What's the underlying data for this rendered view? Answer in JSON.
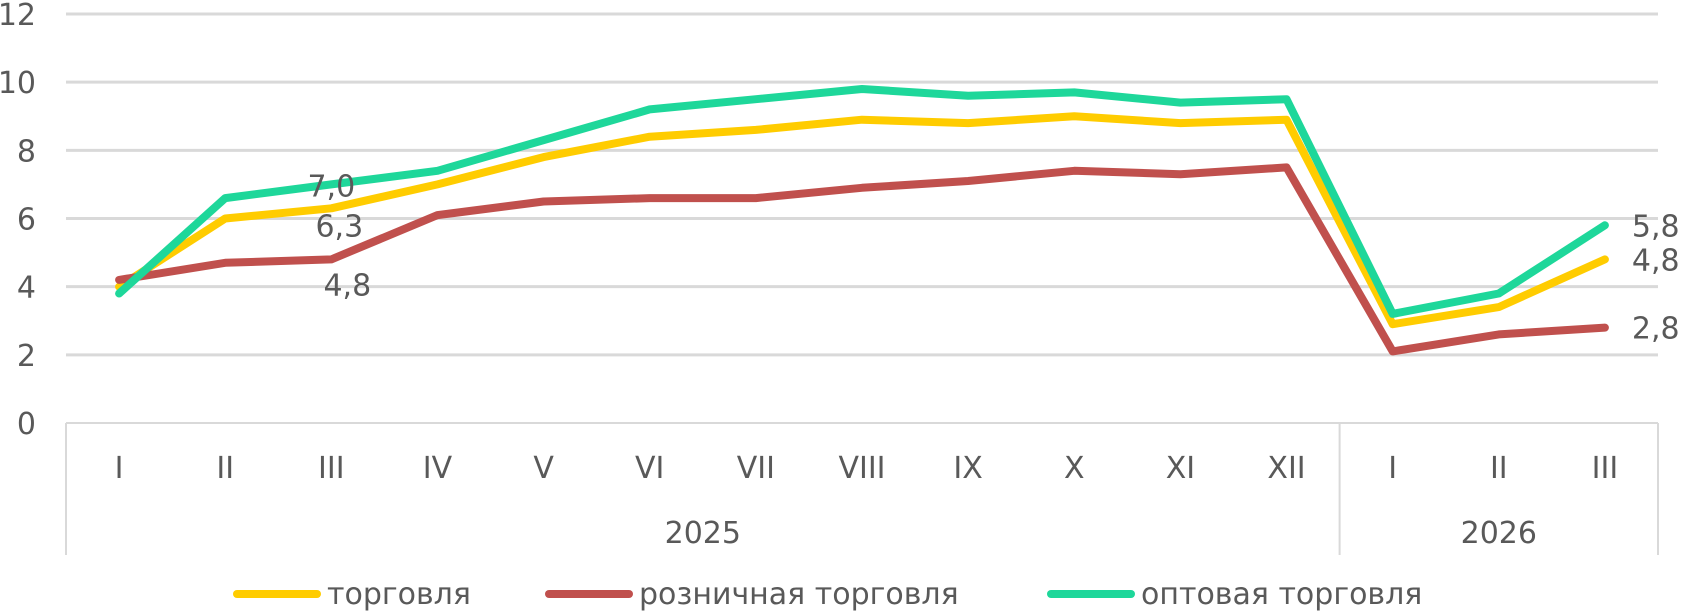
{
  "chart_data": {
    "type": "line",
    "categories": [
      "I",
      "II",
      "III",
      "IV",
      "V",
      "VI",
      "VII",
      "VIII",
      "IX",
      "X",
      "XI",
      "XII",
      "I",
      "II",
      "III"
    ],
    "groups": [
      {
        "label": "2025",
        "from": 0,
        "to": 11
      },
      {
        "label": "2026",
        "from": 12,
        "to": 14
      }
    ],
    "ylim": [
      0,
      12
    ],
    "yticks": [
      "0",
      "2",
      "4",
      "6",
      "8",
      "10",
      "12"
    ],
    "grid": true,
    "legend_position": "bottom",
    "series": [
      {
        "name": "торговля",
        "color": "#FFCC00",
        "values": [
          4.0,
          6.0,
          6.3,
          7.0,
          7.8,
          8.4,
          8.6,
          8.9,
          8.8,
          9.0,
          8.8,
          8.9,
          2.9,
          3.4,
          4.8
        ]
      },
      {
        "name": "розничная торговля",
        "color": "#C0504D",
        "values": [
          4.2,
          4.7,
          4.8,
          6.1,
          6.5,
          6.6,
          6.6,
          6.9,
          7.1,
          7.4,
          7.3,
          7.5,
          2.1,
          2.6,
          2.8
        ]
      },
      {
        "name": "оптовая торговля",
        "color": "#1ED79A",
        "values": [
          3.8,
          6.6,
          7.0,
          7.4,
          8.3,
          9.2,
          9.5,
          9.8,
          9.6,
          9.7,
          9.4,
          9.5,
          3.2,
          3.8,
          5.8
        ]
      }
    ],
    "data_labels": [
      {
        "series": 2,
        "index": 2,
        "text": "7,0"
      },
      {
        "series": 0,
        "index": 2,
        "text": "6,3"
      },
      {
        "series": 1,
        "index": 2,
        "text": "4,8"
      },
      {
        "series": 2,
        "index": 14,
        "text": "5,8"
      },
      {
        "series": 0,
        "index": 14,
        "text": "4,8"
      },
      {
        "series": 1,
        "index": 14,
        "text": "2,8"
      }
    ]
  }
}
